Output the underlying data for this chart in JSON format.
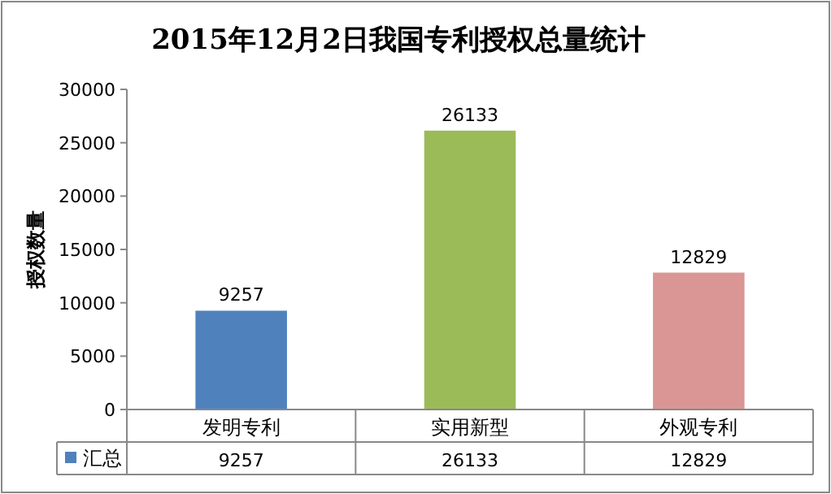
{
  "chart_data": {
    "type": "bar",
    "title": "2015年12月2日我国专利授权总量统计",
    "ylabel": "授权数量",
    "categories": [
      "发明专利",
      "实用新型",
      "外观专利"
    ],
    "series": [
      {
        "name": "汇总",
        "values": [
          9257,
          26133,
          12829
        ],
        "value_labels": [
          "9257",
          "26133",
          "12829"
        ],
        "colors": [
          "#4f81bd",
          "#9bbb59",
          "#d99694"
        ]
      }
    ],
    "ylim": [
      0,
      30000
    ],
    "yticks": [
      0,
      5000,
      10000,
      15000,
      20000,
      25000,
      30000
    ],
    "data_labels": true
  }
}
